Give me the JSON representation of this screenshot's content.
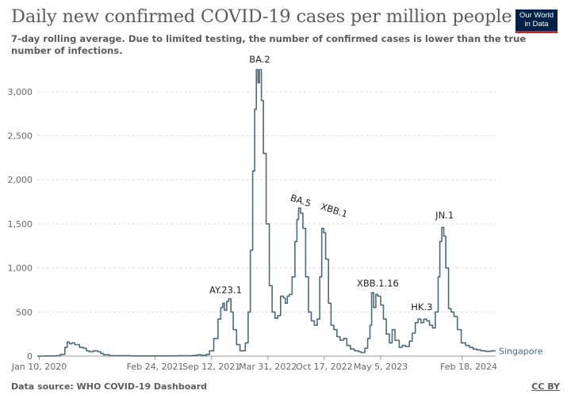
{
  "header": {
    "title": "Daily new confirmed COVID-19 cases per million people",
    "subtitle": "7-day rolling average. Due to limited testing, the number of confirmed cases is lower than the true number of infections.",
    "logo_line1": "Our World",
    "logo_line2": "in Data"
  },
  "footer": {
    "source": "Data source: WHO COVID-19 Dashboard",
    "license": "CC BY"
  },
  "colors": {
    "series": "#4c6a77",
    "logo_bg": "#002147",
    "logo_accent": "#ce261e"
  },
  "chart_data": {
    "type": "line",
    "title": "Daily new confirmed COVID-19 cases per million people",
    "ylim": [
      0,
      3250
    ],
    "yticks": [
      0,
      500,
      1000,
      1500,
      2000,
      2500,
      3000
    ],
    "ytick_labels": [
      "0",
      "500",
      "1,000",
      "1,500",
      "2,000",
      "2,500",
      "3,000"
    ],
    "xlim": [
      "2020-01-03",
      "2024-06-16"
    ],
    "xticks": [
      {
        "label": "Jan 10, 2020",
        "date": "2020-01-10"
      },
      {
        "label": "Feb 24, 2021",
        "date": "2021-02-24"
      },
      {
        "label": "Sep 12, 2021",
        "date": "2021-09-12"
      },
      {
        "label": "Mar 31, 2022",
        "date": "2022-03-31"
      },
      {
        "label": "Oct 17, 2022",
        "date": "2022-10-17"
      },
      {
        "label": "May 5, 2023",
        "date": "2023-05-05"
      },
      {
        "label": "Feb 18, 2024",
        "date": "2024-02-18"
      }
    ],
    "grid": "horizontal dashed",
    "series": [
      {
        "name": "Singapore",
        "points": [
          [
            "2020-01-03",
            0
          ],
          [
            "2020-02-01",
            2
          ],
          [
            "2020-03-10",
            5
          ],
          [
            "2020-03-25",
            20
          ],
          [
            "2020-04-10",
            100
          ],
          [
            "2020-04-18",
            160
          ],
          [
            "2020-04-26",
            140
          ],
          [
            "2020-05-05",
            150
          ],
          [
            "2020-05-15",
            130
          ],
          [
            "2020-06-01",
            100
          ],
          [
            "2020-06-15",
            90
          ],
          [
            "2020-06-25",
            60
          ],
          [
            "2020-07-05",
            50
          ],
          [
            "2020-07-20",
            60
          ],
          [
            "2020-08-05",
            50
          ],
          [
            "2020-08-15",
            30
          ],
          [
            "2020-08-25",
            15
          ],
          [
            "2020-09-15",
            5
          ],
          [
            "2020-12-01",
            2
          ],
          [
            "2021-02-24",
            2
          ],
          [
            "2021-04-01",
            3
          ],
          [
            "2021-05-15",
            5
          ],
          [
            "2021-06-15",
            4
          ],
          [
            "2021-07-10",
            8
          ],
          [
            "2021-07-25",
            15
          ],
          [
            "2021-08-05",
            10
          ],
          [
            "2021-08-25",
            20
          ],
          [
            "2021-09-05",
            60
          ],
          [
            "2021-09-20",
            200
          ],
          [
            "2021-10-05",
            420
          ],
          [
            "2021-10-15",
            550
          ],
          [
            "2021-10-22",
            600
          ],
          [
            "2021-10-28",
            520
          ],
          [
            "2021-11-05",
            620
          ],
          [
            "2021-11-12",
            650
          ],
          [
            "2021-11-20",
            500
          ],
          [
            "2021-11-28",
            300
          ],
          [
            "2021-12-10",
            130
          ],
          [
            "2021-12-22",
            60
          ],
          [
            "2022-01-01",
            60
          ],
          [
            "2022-01-10",
            150
          ],
          [
            "2022-01-20",
            500
          ],
          [
            "2022-01-28",
            1200
          ],
          [
            "2022-02-05",
            2100
          ],
          [
            "2022-02-12",
            2800
          ],
          [
            "2022-02-18",
            3250
          ],
          [
            "2022-02-24",
            3100
          ],
          [
            "2022-03-01",
            3250
          ],
          [
            "2022-03-08",
            2900
          ],
          [
            "2022-03-15",
            2300
          ],
          [
            "2022-03-25",
            1500
          ],
          [
            "2022-04-05",
            800
          ],
          [
            "2022-04-15",
            500
          ],
          [
            "2022-04-25",
            430
          ],
          [
            "2022-05-05",
            460
          ],
          [
            "2022-05-15",
            680
          ],
          [
            "2022-05-25",
            660
          ],
          [
            "2022-06-01",
            600
          ],
          [
            "2022-06-08",
            680
          ],
          [
            "2022-06-15",
            700
          ],
          [
            "2022-06-25",
            900
          ],
          [
            "2022-07-05",
            1300
          ],
          [
            "2022-07-12",
            1550
          ],
          [
            "2022-07-18",
            1680
          ],
          [
            "2022-07-25",
            1620
          ],
          [
            "2022-08-02",
            1450
          ],
          [
            "2022-08-12",
            900
          ],
          [
            "2022-08-22",
            500
          ],
          [
            "2022-09-01",
            400
          ],
          [
            "2022-09-12",
            350
          ],
          [
            "2022-09-22",
            420
          ],
          [
            "2022-10-01",
            900
          ],
          [
            "2022-10-08",
            1450
          ],
          [
            "2022-10-15",
            1400
          ],
          [
            "2022-10-22",
            1100
          ],
          [
            "2022-11-01",
            600
          ],
          [
            "2022-11-10",
            350
          ],
          [
            "2022-11-20",
            300
          ],
          [
            "2022-12-01",
            220
          ],
          [
            "2022-12-12",
            180
          ],
          [
            "2022-12-25",
            200
          ],
          [
            "2023-01-05",
            120
          ],
          [
            "2023-01-18",
            80
          ],
          [
            "2023-02-01",
            60
          ],
          [
            "2023-02-15",
            50
          ],
          [
            "2023-02-25",
            40
          ],
          [
            "2023-03-10",
            90
          ],
          [
            "2023-03-20",
            200
          ],
          [
            "2023-03-28",
            350
          ],
          [
            "2023-04-03",
            720
          ],
          [
            "2023-04-10",
            550
          ],
          [
            "2023-04-18",
            700
          ],
          [
            "2023-04-25",
            680
          ],
          [
            "2023-05-05",
            580
          ],
          [
            "2023-05-15",
            420
          ],
          [
            "2023-05-25",
            250
          ],
          [
            "2023-06-05",
            150
          ],
          [
            "2023-06-15",
            300
          ],
          [
            "2023-06-25",
            180
          ],
          [
            "2023-07-10",
            100
          ],
          [
            "2023-07-20",
            120
          ],
          [
            "2023-08-01",
            110
          ],
          [
            "2023-08-15",
            170
          ],
          [
            "2023-08-25",
            260
          ],
          [
            "2023-09-05",
            380
          ],
          [
            "2023-09-15",
            420
          ],
          [
            "2023-09-25",
            380
          ],
          [
            "2023-10-05",
            420
          ],
          [
            "2023-10-15",
            400
          ],
          [
            "2023-10-25",
            350
          ],
          [
            "2023-11-05",
            320
          ],
          [
            "2023-11-15",
            500
          ],
          [
            "2023-11-25",
            900
          ],
          [
            "2023-12-01",
            1300
          ],
          [
            "2023-12-08",
            1460
          ],
          [
            "2023-12-15",
            1360
          ],
          [
            "2023-12-22",
            1000
          ],
          [
            "2024-01-01",
            540
          ],
          [
            "2024-01-10",
            500
          ],
          [
            "2024-01-20",
            450
          ],
          [
            "2024-02-01",
            300
          ],
          [
            "2024-02-15",
            150
          ],
          [
            "2024-03-01",
            120
          ],
          [
            "2024-03-15",
            100
          ],
          [
            "2024-03-28",
            80
          ],
          [
            "2024-04-10",
            70
          ],
          [
            "2024-04-25",
            60
          ],
          [
            "2024-05-10",
            55
          ],
          [
            "2024-06-01",
            60
          ],
          [
            "2024-06-16",
            60
          ]
        ]
      }
    ],
    "annotations": [
      {
        "text": "AY.23.1",
        "date": "2021-11-01",
        "y": 715,
        "rotate": 0
      },
      {
        "text": "BA.2",
        "date": "2022-03-02",
        "y": 3330,
        "rotate": 0
      },
      {
        "text": "BA.5",
        "date": "2022-07-22",
        "y": 1730,
        "rotate": 18
      },
      {
        "text": "XBB.1",
        "date": "2022-11-18",
        "y": 1620,
        "rotate": 18
      },
      {
        "text": "XBB.1.16",
        "date": "2023-04-25",
        "y": 790,
        "rotate": 0
      },
      {
        "text": "HK.3",
        "date": "2023-09-28",
        "y": 520,
        "rotate": 0
      },
      {
        "text": "JN.1",
        "date": "2023-12-18",
        "y": 1560,
        "rotate": 0
      }
    ]
  }
}
